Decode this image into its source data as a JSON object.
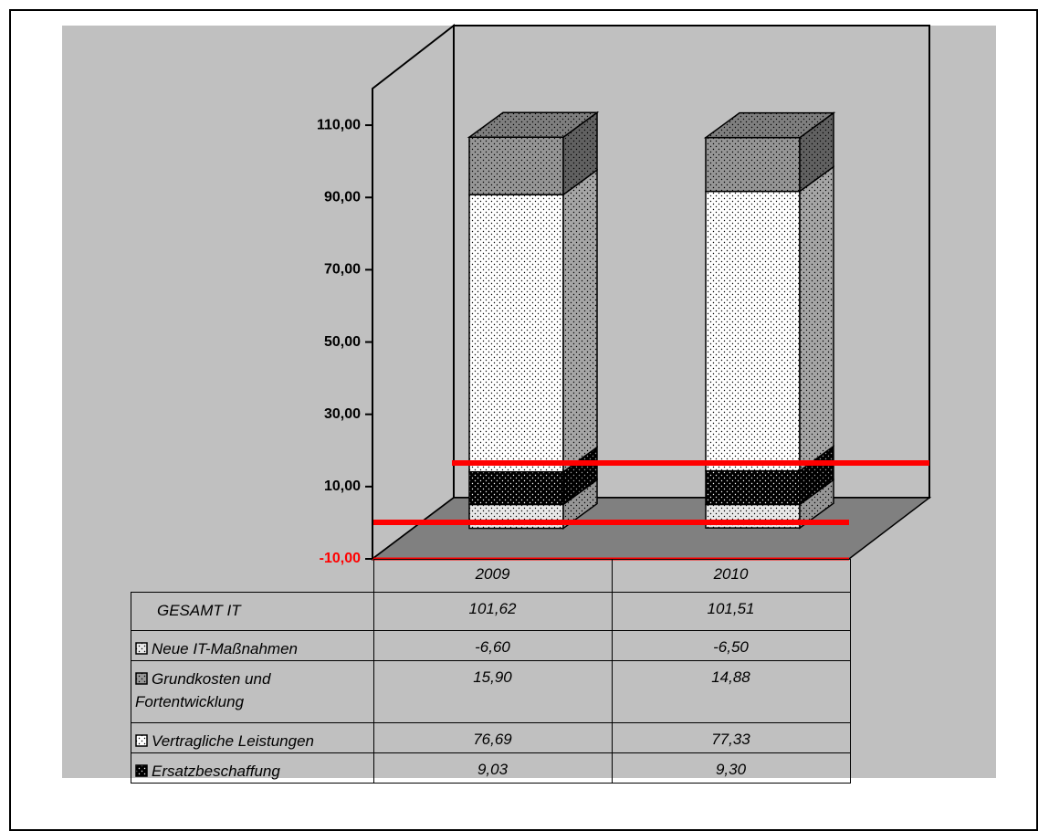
{
  "chart_data": {
    "type": "bar3d_stacked_table",
    "categories": [
      "2009",
      "2010"
    ],
    "totals": {
      "name": "GESAMT IT",
      "values": [
        101.62,
        101.51
      ],
      "value_labels": [
        "101,62",
        "101,51"
      ]
    },
    "series": [
      {
        "name": "Neue IT-Maßnahmen",
        "color": "#e8e8e8",
        "values": [
          -6.6,
          -6.5
        ],
        "value_labels": [
          "-6,60",
          "-6,50"
        ]
      },
      {
        "name": "Grundkosten und Fortentwicklung",
        "color": "#969696",
        "values": [
          15.9,
          14.88
        ],
        "value_labels": [
          "15,90",
          "14,88"
        ]
      },
      {
        "name": "Vertragliche Leistungen",
        "color": "#ffffff",
        "values": [
          76.69,
          77.33
        ],
        "value_labels": [
          "76,69",
          "77,33"
        ]
      },
      {
        "name": "Ersatzbeschaffung",
        "color": "#000000",
        "values": [
          9.03,
          9.3
        ],
        "value_labels": [
          "9,03",
          "9,30"
        ]
      }
    ],
    "stacked": true,
    "ylim": [
      -10,
      120
    ],
    "yticks": [
      {
        "value": -10,
        "label": "-10,00"
      },
      {
        "value": 10,
        "label": "10,00"
      },
      {
        "value": 30,
        "label": "30,00"
      },
      {
        "value": 50,
        "label": "50,00"
      },
      {
        "value": 70,
        "label": "70,00"
      },
      {
        "value": 90,
        "label": "90,00"
      },
      {
        "value": 110,
        "label": "110,00"
      }
    ]
  }
}
